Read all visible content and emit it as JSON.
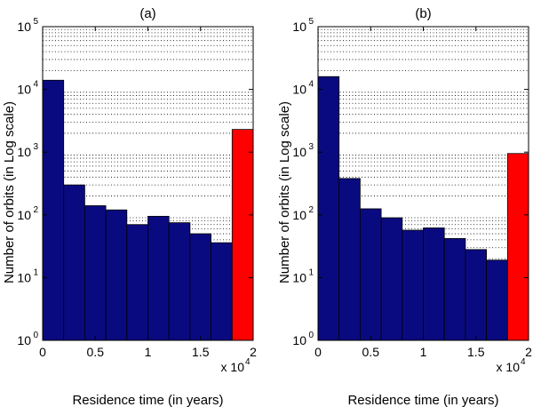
{
  "chart_data": [
    {
      "type": "bar",
      "title": "(a)",
      "xlabel": "Residence time (in years)",
      "ylabel": "Number of orbits (in Log scale)",
      "x_multiplier_label": "x 10",
      "x_multiplier_exp": "4",
      "xlim": [
        0,
        2
      ],
      "ylim": [
        1,
        100000
      ],
      "yscale": "log",
      "grid": true,
      "xticks": [
        0,
        0.5,
        1,
        1.5,
        2
      ],
      "xtick_labels": [
        "0",
        "0.5",
        "1",
        "1.5",
        "2"
      ],
      "yticks": [
        1,
        10,
        100,
        1000,
        10000,
        100000
      ],
      "ytick_base": "10",
      "ytick_exponents": [
        "0",
        "1",
        "2",
        "3",
        "4",
        "5"
      ],
      "bin_edges": [
        0,
        0.2,
        0.4,
        0.6,
        0.8,
        1.0,
        1.2,
        1.4,
        1.6,
        1.8,
        2.0
      ],
      "values": [
        14000,
        300,
        140,
        120,
        70,
        95,
        75,
        50,
        36,
        2300
      ],
      "colors": [
        "#0a0a80",
        "#0a0a80",
        "#0a0a80",
        "#0a0a80",
        "#0a0a80",
        "#0a0a80",
        "#0a0a80",
        "#0a0a80",
        "#0a0a80",
        "#ff0000"
      ]
    },
    {
      "type": "bar",
      "title": "(b)",
      "xlabel": "Residence time (in years)",
      "ylabel": "Number of orbits (in Log scale)",
      "x_multiplier_label": "x 10",
      "x_multiplier_exp": "4",
      "xlim": [
        0,
        2
      ],
      "ylim": [
        1,
        100000
      ],
      "yscale": "log",
      "grid": true,
      "xticks": [
        0,
        0.5,
        1,
        1.5,
        2
      ],
      "xtick_labels": [
        "0",
        "0.5",
        "1",
        "1.5",
        "2"
      ],
      "yticks": [
        1,
        10,
        100,
        1000,
        10000,
        100000
      ],
      "ytick_base": "10",
      "ytick_exponents": [
        "0",
        "1",
        "2",
        "3",
        "4",
        "5"
      ],
      "bin_edges": [
        0,
        0.2,
        0.4,
        0.6,
        0.8,
        1.0,
        1.2,
        1.4,
        1.6,
        1.8,
        2.0
      ],
      "values": [
        16000,
        380,
        125,
        90,
        57,
        62,
        42,
        28,
        19,
        950
      ],
      "colors": [
        "#0a0a80",
        "#0a0a80",
        "#0a0a80",
        "#0a0a80",
        "#0a0a80",
        "#0a0a80",
        "#0a0a80",
        "#0a0a80",
        "#0a0a80",
        "#ff0000"
      ]
    }
  ]
}
